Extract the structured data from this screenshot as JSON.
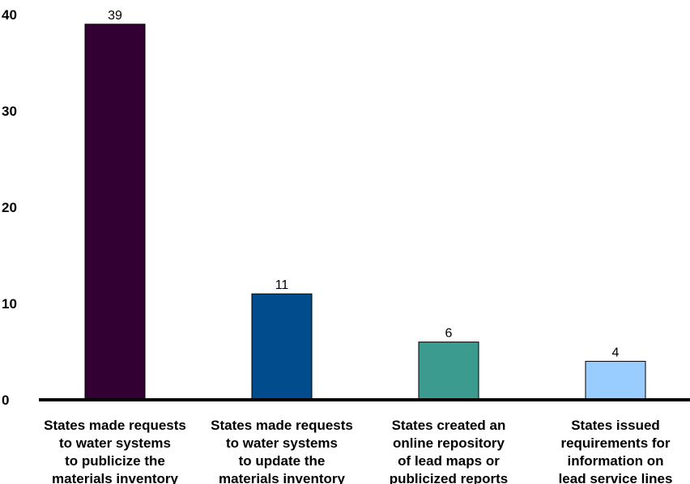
{
  "chart_data": {
    "type": "bar",
    "categories": [
      [
        "States made requests",
        "to water systems",
        "to publicize the",
        "materials inventory"
      ],
      [
        "States made requests",
        "to water systems",
        "to update the",
        "materials inventory"
      ],
      [
        "States created an",
        "online repository",
        "of lead maps or",
        "publicized reports"
      ],
      [
        "States issued",
        "requirements for",
        "information on",
        "lead service lines"
      ]
    ],
    "values": [
      39,
      11,
      6,
      4
    ],
    "data_labels": [
      "39",
      "11",
      "6",
      "4"
    ],
    "colors": [
      "#330033",
      "#004C8C",
      "#3B9B8F",
      "#99CCFF"
    ],
    "yticks": [
      "0",
      "10",
      "20",
      "30",
      "40"
    ],
    "ylim": [
      0,
      40
    ],
    "grid": false,
    "legend": "none"
  }
}
